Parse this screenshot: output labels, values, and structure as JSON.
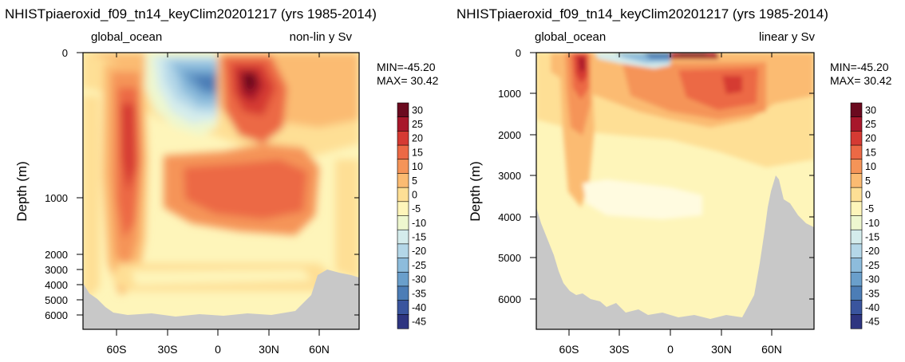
{
  "chart_data": [
    {
      "type": "heatmap",
      "title": "NHISTpiaeroxid_f09_tn14_keyClim20201217 (yrs 1985-2014)",
      "region_label": "global_ocean",
      "scale_label": "non-lin y Sv",
      "ylabel": "Depth (m)",
      "y_scale": "non-linear",
      "xlim": [
        -80,
        85
      ],
      "ylim": [
        6500,
        0
      ],
      "x_ticks": [
        -60,
        -30,
        0,
        30,
        60
      ],
      "x_tick_labels": [
        "60S",
        "30S",
        "0",
        "30N",
        "60N"
      ],
      "y_ticks": [
        0,
        1000,
        2000,
        3000,
        4000,
        5000,
        6000
      ],
      "y_tick_labels": [
        "0",
        "1000",
        "2000",
        "3000",
        "4000",
        "5000",
        "6000"
      ],
      "min_label": "MIN=-45.20",
      "max_label": "MAX= 30.42",
      "min_value": -45.2,
      "max_value": 30.42
    },
    {
      "type": "heatmap",
      "title": "NHISTpiaeroxid_f09_tn14_keyClim20201217 (yrs 1985-2014)",
      "region_label": "global_ocean",
      "scale_label": "linear y Sv",
      "ylabel": "Depth (m)",
      "y_scale": "linear",
      "xlim": [
        -80,
        85
      ],
      "ylim": [
        6750,
        0
      ],
      "x_ticks": [
        -60,
        -30,
        0,
        30,
        60
      ],
      "x_tick_labels": [
        "60S",
        "30S",
        "0",
        "30N",
        "60N"
      ],
      "y_ticks": [
        0,
        1000,
        2000,
        3000,
        4000,
        5000,
        6000
      ],
      "y_tick_labels": [
        "0",
        "1000",
        "2000",
        "3000",
        "4000",
        "5000",
        "6000"
      ],
      "min_label": "MIN=-45.20",
      "max_label": "MAX= 30.42",
      "min_value": -45.2,
      "max_value": 30.42
    }
  ],
  "colorbar": {
    "levels": [
      "30",
      "25",
      "20",
      "15",
      "10",
      "5",
      "0",
      "-5",
      "-10",
      "-15",
      "-20",
      "-25",
      "-30",
      "-35",
      "-40",
      "-45"
    ],
    "colors": [
      "#6b0a1f",
      "#a8172b",
      "#d53a33",
      "#ec6945",
      "#f59458",
      "#fbbb72",
      "#fedf95",
      "#fef5ba",
      "#eef7cf",
      "#d4ecec",
      "#b4d7e8",
      "#8dbcdc",
      "#6a9fcb",
      "#4c7db6",
      "#3a559e",
      "#2e3580"
    ]
  },
  "colors": {
    "land": "#c8c8c8",
    "background": "#ffffff",
    "axis": "#000000"
  }
}
